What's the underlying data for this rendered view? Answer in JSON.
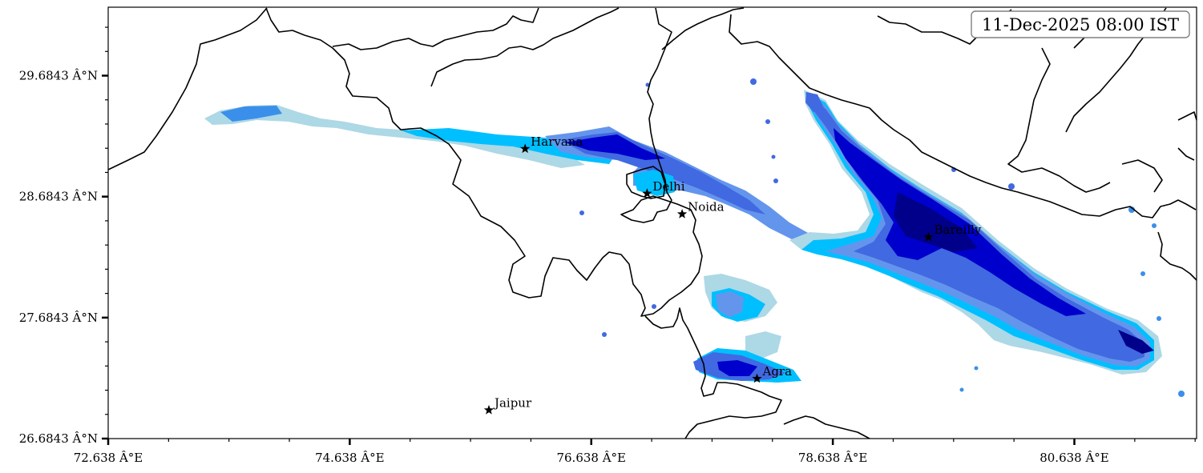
{
  "timestamp": "11-Dec-2025 08:00 IST",
  "axes": {
    "x_ticks": [
      "72.638 Â°E",
      "74.638 Â°E",
      "76.638 Â°E",
      "78.638 Â°E",
      "80.638 Â°E"
    ],
    "y_ticks": [
      "29.6843 Â°N",
      "28.6843 Â°N",
      "27.6843 Â°N",
      "26.6843 Â°N"
    ],
    "lon_range": [
      72.638,
      81.65
    ],
    "lat_range": [
      26.6843,
      30.25
    ]
  },
  "cities": [
    {
      "name": "Harvana",
      "lon": 76.09,
      "lat": 29.08
    },
    {
      "name": "Delhi",
      "lon": 77.1,
      "lat": 28.71
    },
    {
      "name": "Noida",
      "lon": 77.39,
      "lat": 28.54
    },
    {
      "name": "Bareilly",
      "lon": 79.43,
      "lat": 28.35
    },
    {
      "name": "Agra",
      "lon": 78.01,
      "lat": 27.18
    },
    {
      "name": "Jaipur",
      "lon": 75.79,
      "lat": 26.92
    }
  ],
  "colors": {
    "level1": "#add8e6",
    "level2": "#00bfff",
    "level3": "#6495ed",
    "level4": "#4169e1",
    "level5": "#0000cd",
    "level6": "#00008b",
    "boundary": "#000000"
  }
}
